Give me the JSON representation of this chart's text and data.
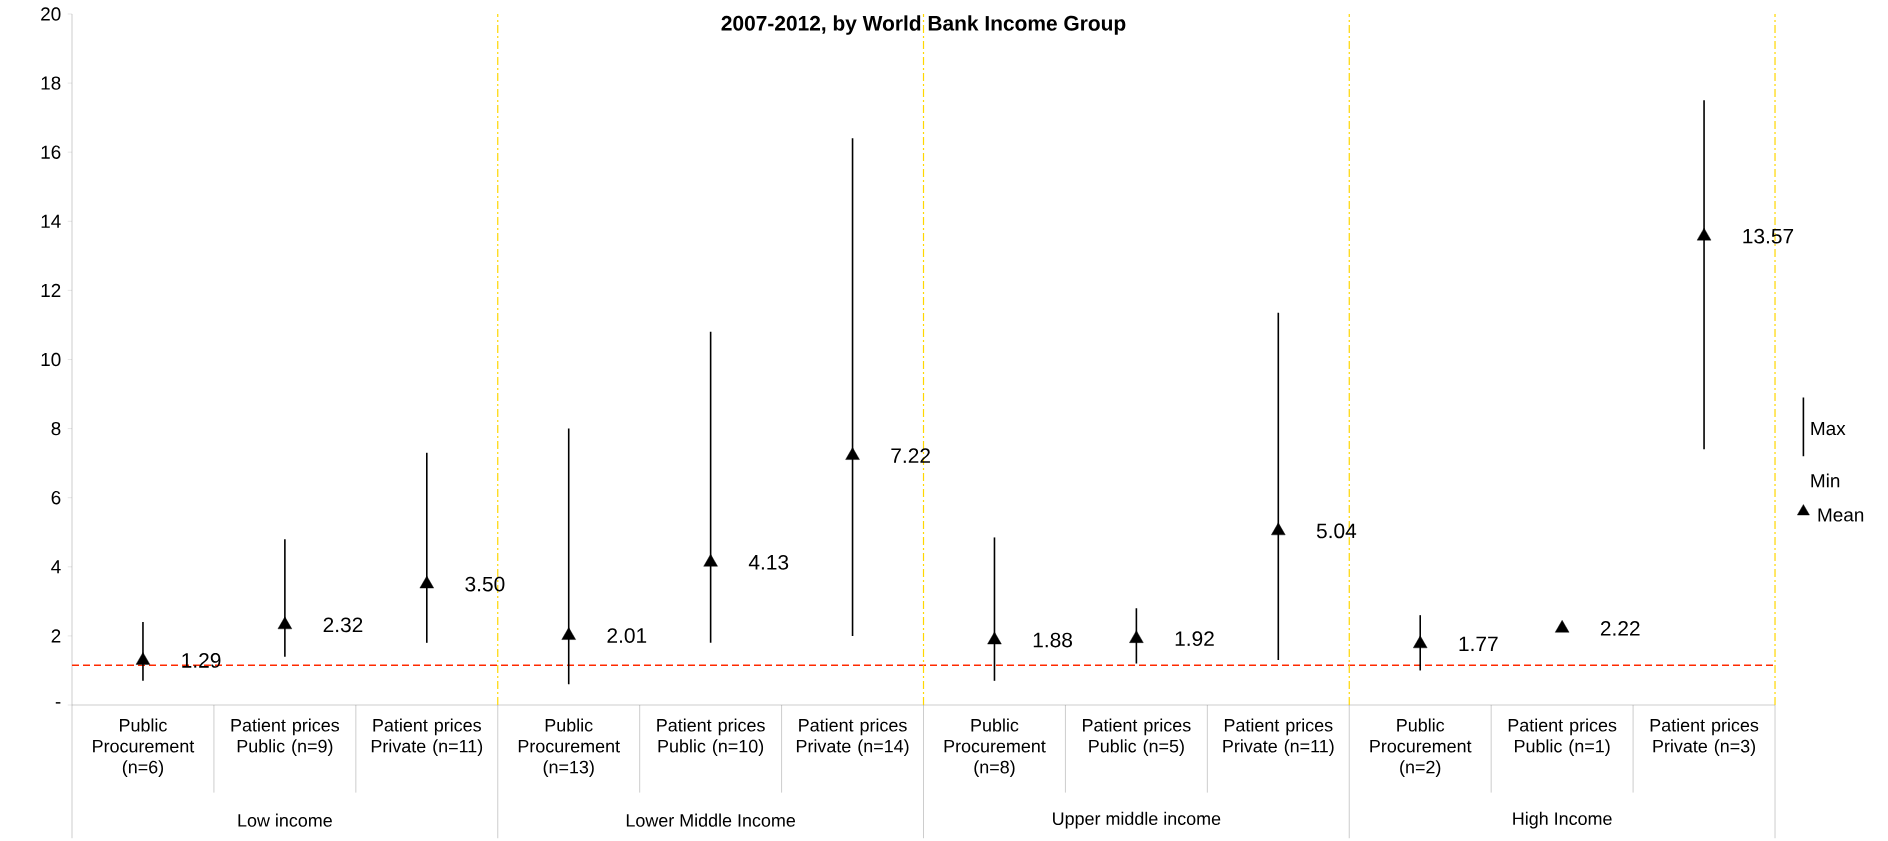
{
  "chart_data": {
    "type": "scatter",
    "title": "2007-2012, by World Bank Income Group",
    "categories": [
      "Public Procurement (n=6)",
      "Patient prices Public (n=9)",
      "Patient prices Private (n=11)",
      "Public Procurement (n=13)",
      "Patient prices Public (n=10)",
      "Patient prices Private (n=14)",
      "Public Procurement (n=8)",
      "Patient prices Public (n=5)",
      "Patient prices Private (n=11)",
      "Public Procurement (n=2)",
      "Patient prices Public (n=1)",
      "Patient prices Private (n=3)"
    ],
    "series": [
      {
        "name": "Mean",
        "color": "#000000",
        "values": [
          1.29,
          2.32,
          3.5,
          2.01,
          4.13,
          7.22,
          1.88,
          1.92,
          5.04,
          1.77,
          2.22,
          13.57
        ],
        "value_labels": [
          "1.29",
          "2.32",
          "3.50",
          "2.01",
          "4.13",
          "7.22",
          "1.88",
          "1.92",
          "5.04",
          "1.77",
          "2.22",
          "13.57"
        ],
        "errors": [
          [
            0.7,
            2.4
          ],
          [
            1.4,
            4.8
          ],
          [
            1.8,
            7.3
          ],
          [
            0.6,
            8.0
          ],
          [
            1.8,
            10.8
          ],
          [
            2.0,
            16.4
          ],
          [
            0.7,
            4.85
          ],
          [
            1.2,
            2.8
          ],
          [
            1.3,
            11.35
          ],
          [
            1.0,
            2.6
          ],
          null,
          [
            7.4,
            17.5
          ]
        ]
      }
    ],
    "marker": "triangle",
    "ylim": [
      0,
      20
    ],
    "yticks": [
      {
        "value": 0,
        "label": "-"
      },
      2,
      4,
      6,
      8,
      10,
      12,
      14,
      16,
      18,
      20
    ],
    "ref_lines": [
      {
        "axis": "y",
        "value": 1.15,
        "color": "#ff2a00",
        "line_style": "dashed"
      }
    ],
    "annotations": [
      "Low income",
      "Lower Middle Income",
      "Upper middle income",
      "High Income",
      "Max",
      "Min"
    ],
    "legend": "right",
    "grid": false
  }
}
